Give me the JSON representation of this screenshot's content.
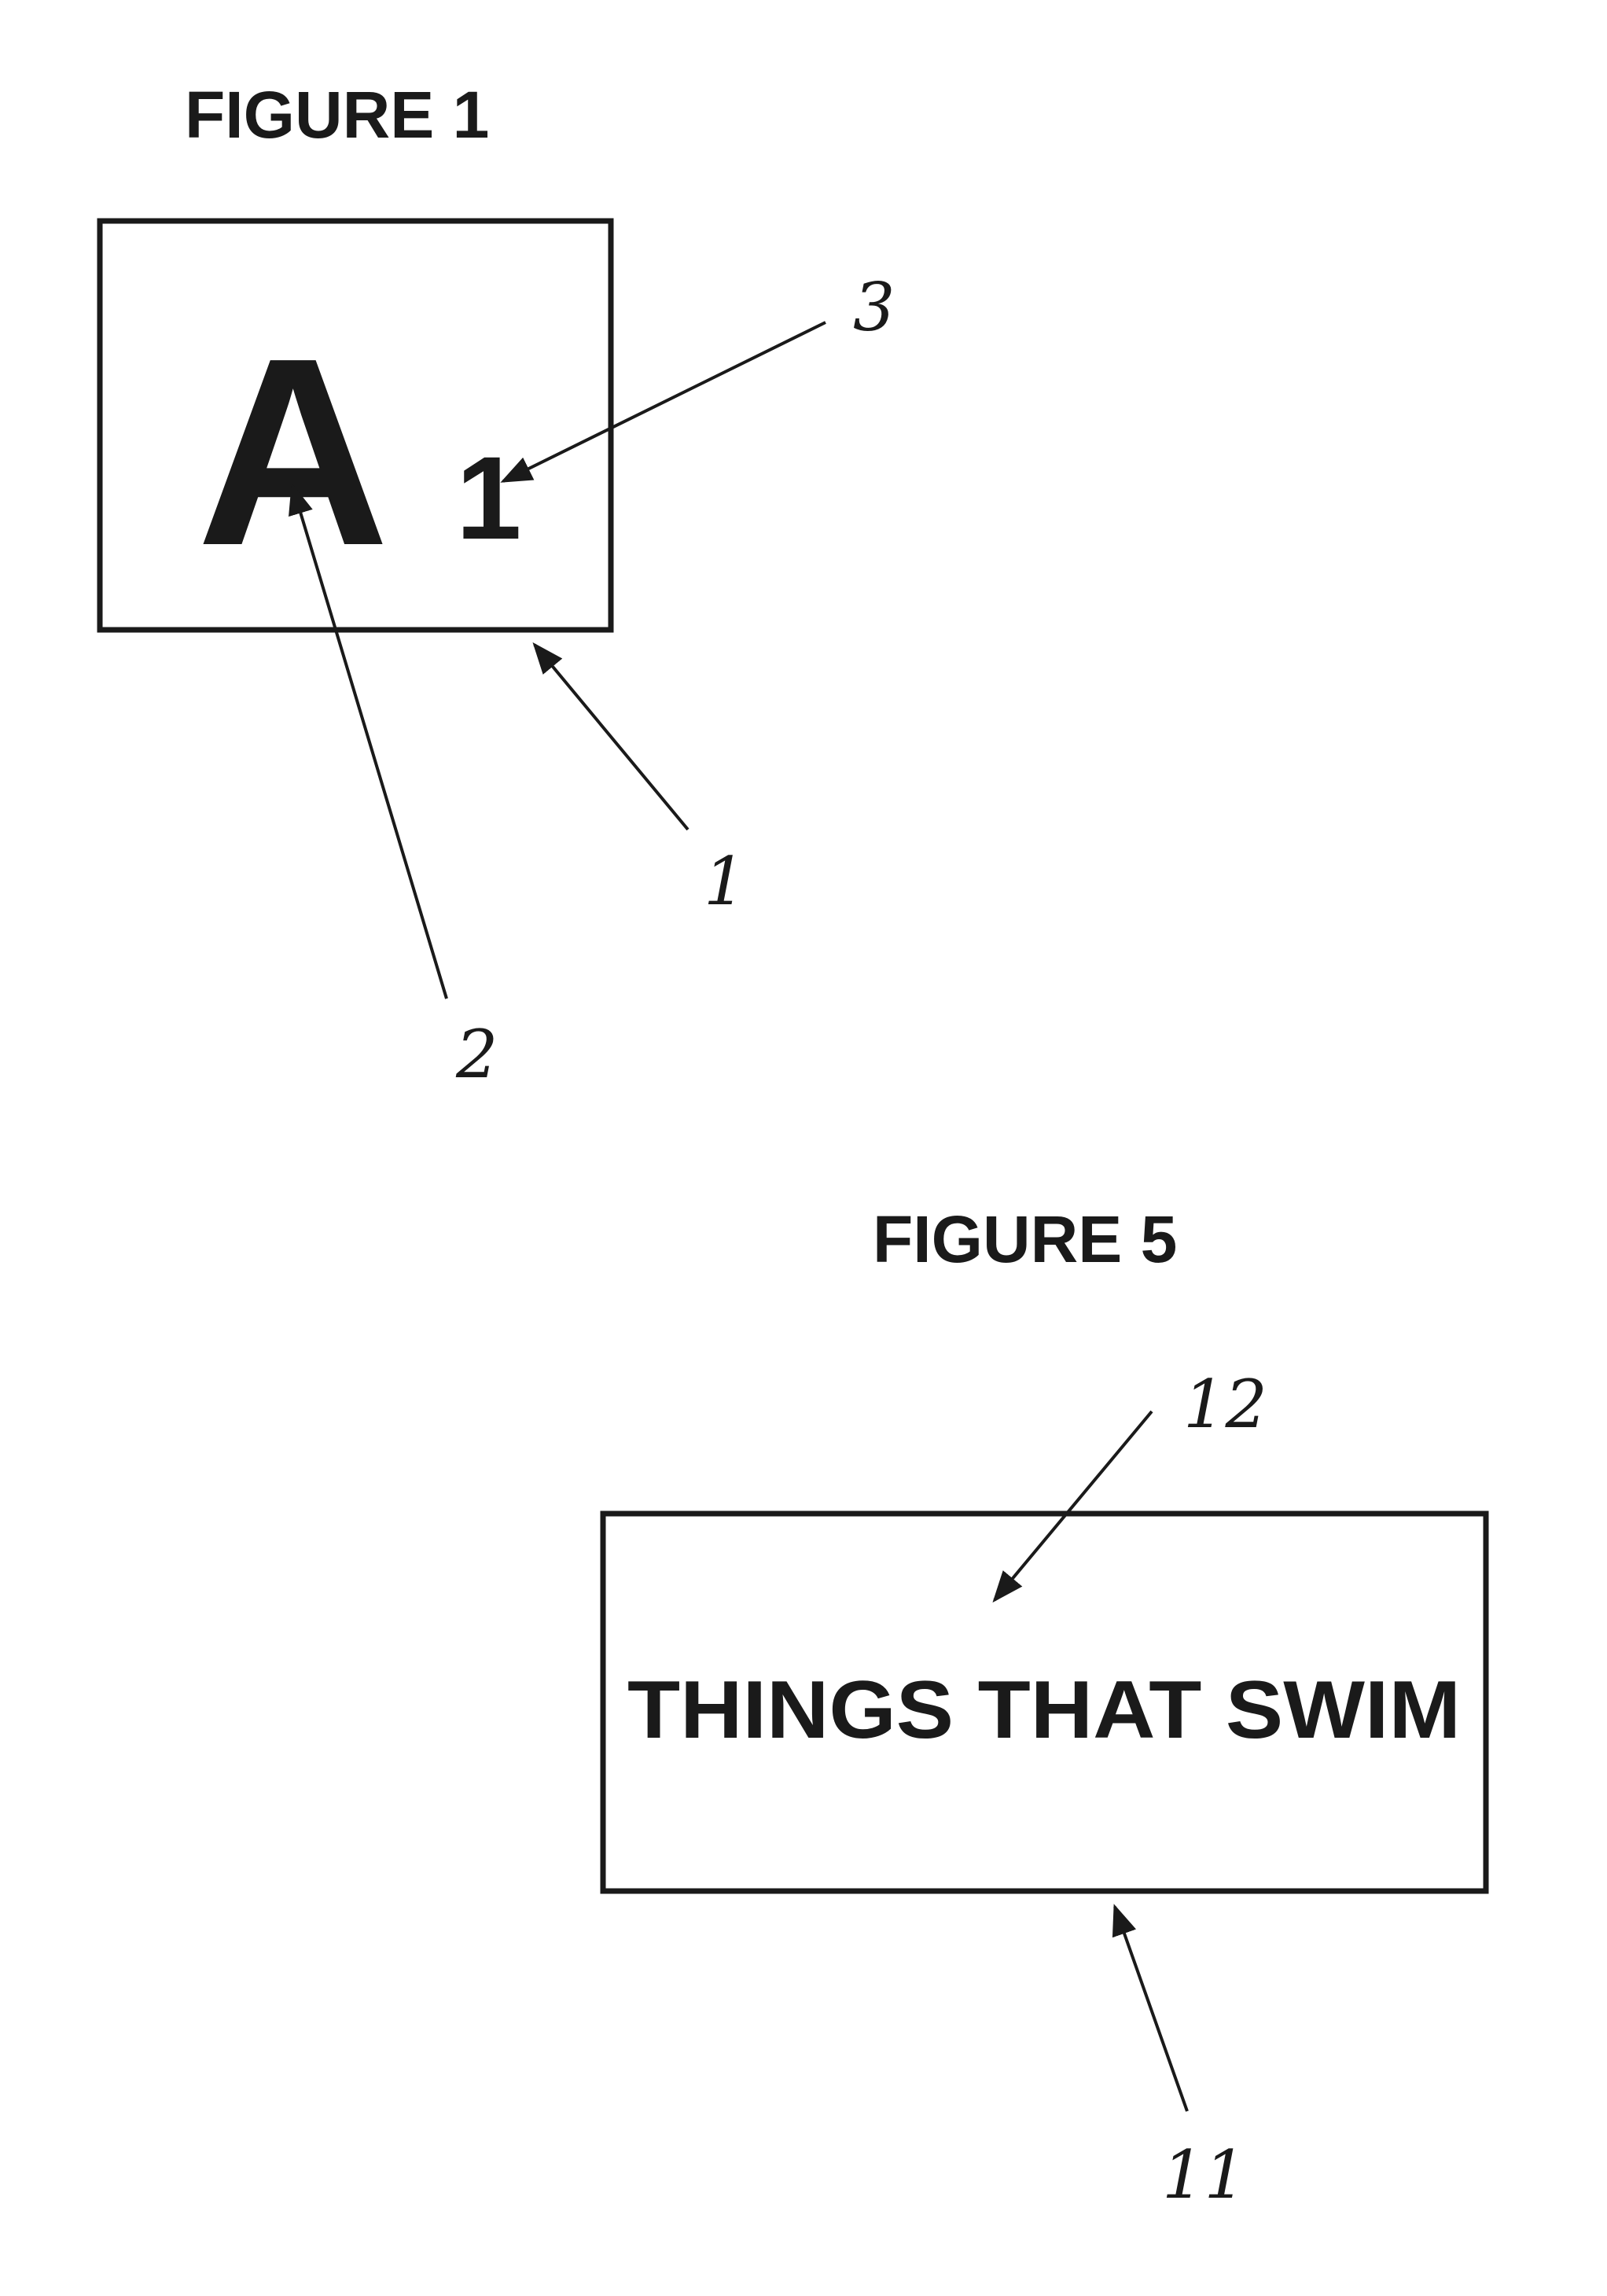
{
  "figure1": {
    "title": "FIGURE 1",
    "letter": "A",
    "digit": "1",
    "refs": {
      "card": "1",
      "letter": "2",
      "digit": "3"
    }
  },
  "figure5": {
    "title": "FIGURE 5",
    "card_text": "THINGS THAT SWIM",
    "refs": {
      "text": "12",
      "card": "11"
    }
  },
  "colors": {
    "ink": "#1a1a1a",
    "paper": "#ffffff"
  }
}
